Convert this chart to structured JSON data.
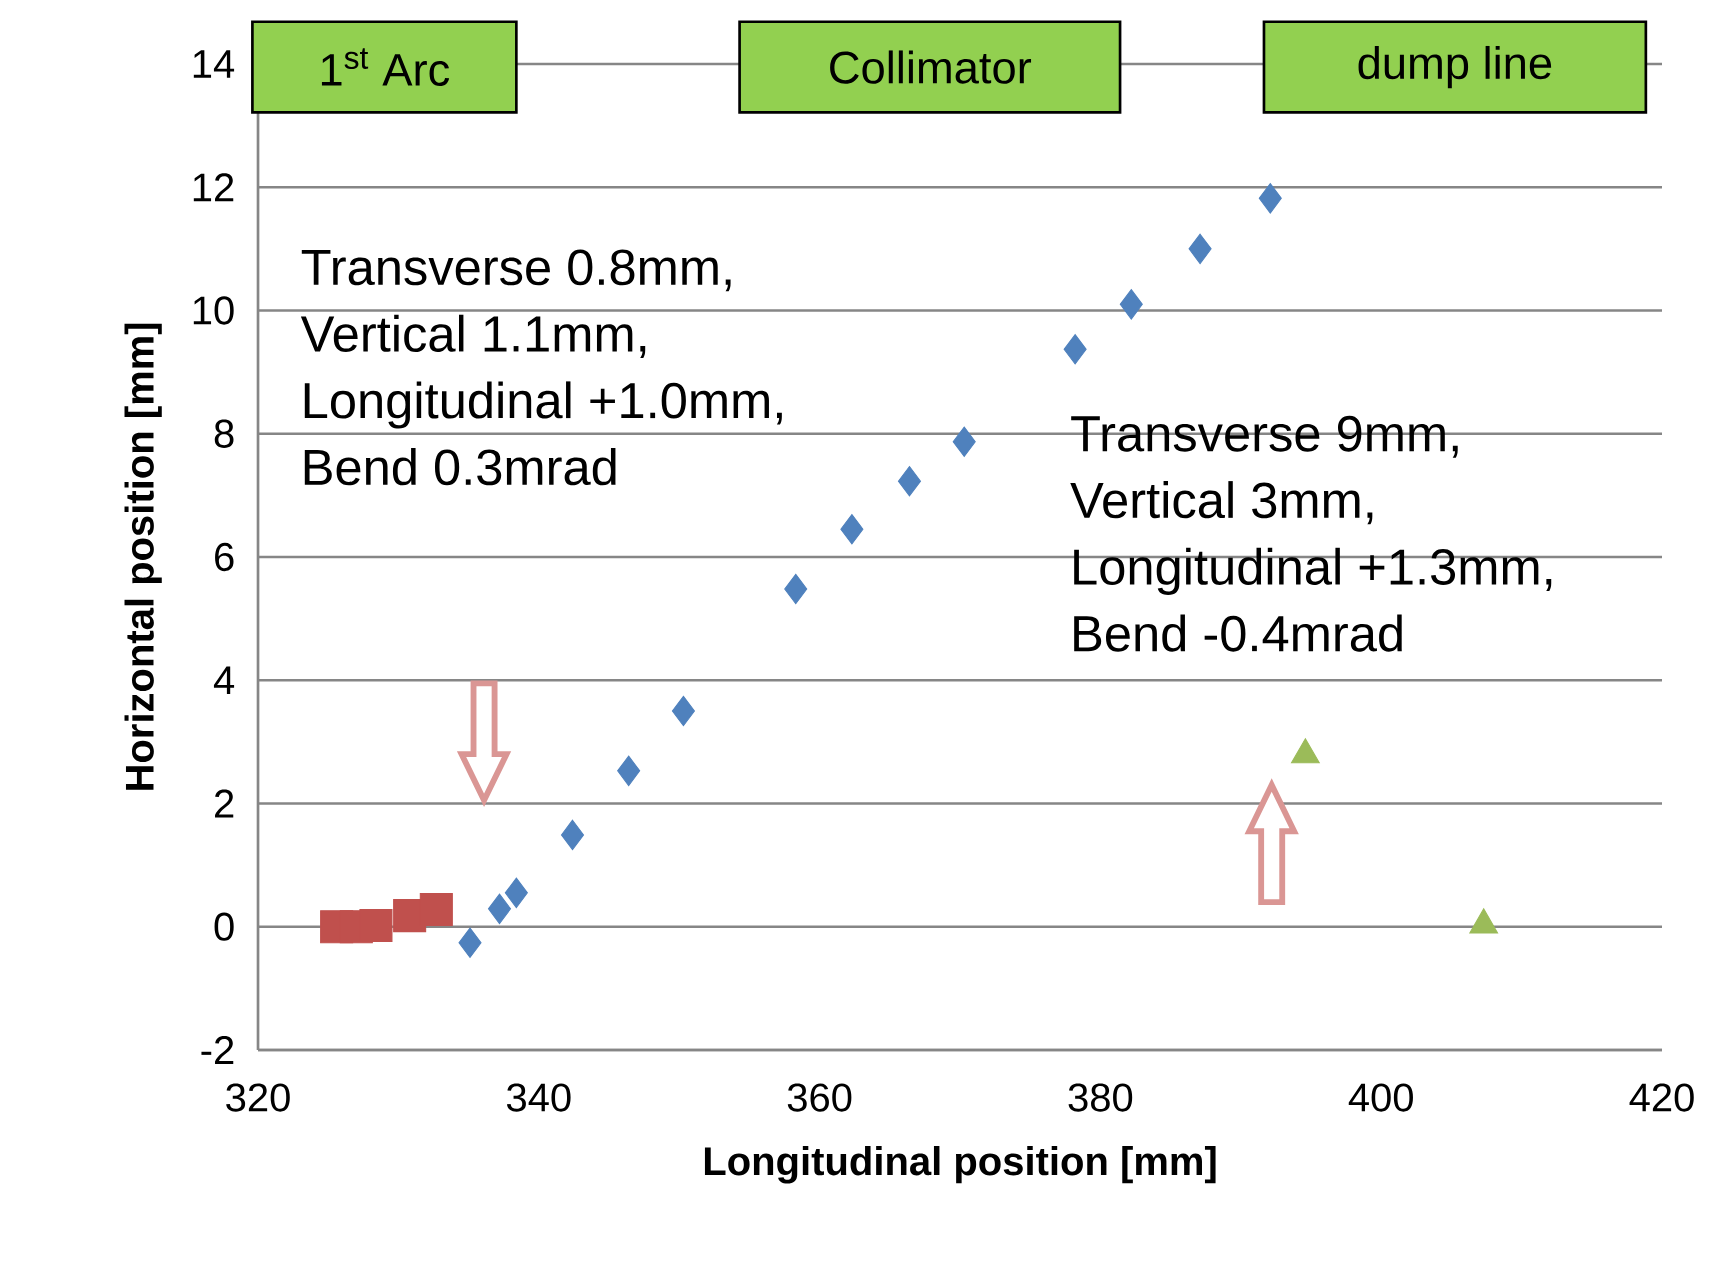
{
  "chart_data": {
    "type": "scatter",
    "xlabel": "Longitudinal position [mm]",
    "ylabel": "Horizontal position [mm]",
    "xlim": [
      320,
      420
    ],
    "xticks": [
      320,
      340,
      360,
      380,
      400,
      420
    ],
    "ylim": [
      -2,
      14
    ],
    "yticks": [
      -2,
      0,
      2,
      4,
      6,
      8,
      10,
      12,
      14
    ],
    "grid": "y",
    "series": [
      {
        "color": "#4f81bd",
        "marker": "diamond",
        "x": [
          335.1,
          337.2,
          338.4,
          342.4,
          346.4,
          350.3,
          358.3,
          362.3,
          366.4,
          370.3,
          378.2,
          382.2,
          387.1,
          392.1
        ],
        "values": [
          -0.26,
          0.29,
          0.55,
          1.49,
          2.53,
          3.5,
          5.48,
          6.45,
          7.23,
          7.87,
          9.37,
          10.1,
          11.0,
          11.82
        ]
      },
      {
        "color": "#c0504d",
        "marker": "square",
        "x": [
          325.6,
          327.0,
          328.4,
          330.8,
          332.7
        ],
        "values": [
          0,
          0,
          0.02,
          0.18,
          0.28
        ]
      },
      {
        "color": "#9bbb59",
        "marker": "triangle",
        "x": [
          394.6,
          407.3
        ],
        "values": [
          2.79,
          0.03
        ]
      }
    ],
    "annotations": [
      "1$^{st}$ Arc",
      "Collimator",
      "dump line",
      "Transverse 0.8mm,",
      "Vertical  1.1mm,",
      "Longitudinal +1.0mm,",
      "Bend 0.3mrad",
      "Transverse 9mm,",
      "Vertical  3mm,",
      "Longitudinal +1.3mm,",
      "Bend -0.4mrad"
    ]
  }
}
